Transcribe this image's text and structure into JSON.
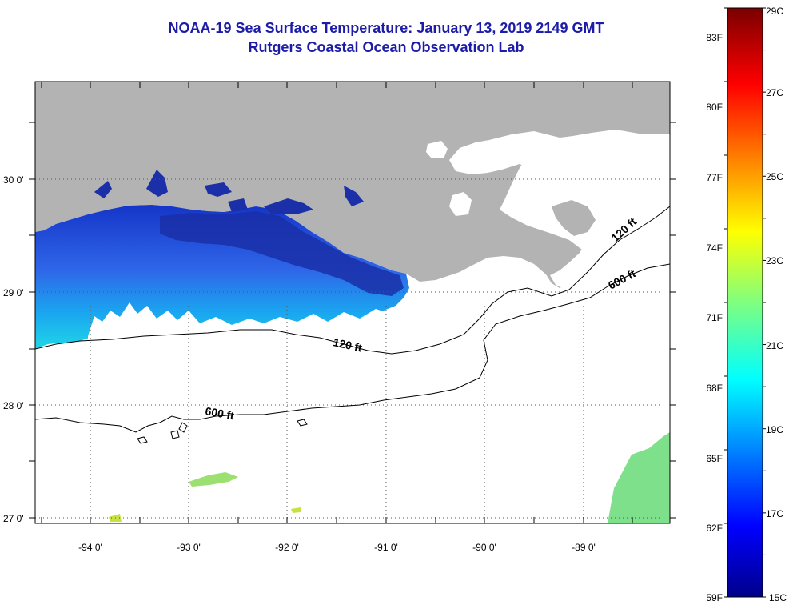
{
  "header": {
    "title": "NOAA-19 Sea Surface Temperature:  January 13, 2019 2149 GMT",
    "subtitle": "Rutgers Coastal Ocean Observation Lab"
  },
  "map": {
    "lat_labels": [
      "30 0'",
      "29 0'",
      "28 0'",
      "27 0'"
    ],
    "lon_labels": [
      "-94 0'",
      "-93 0'",
      "-92 0'",
      "-91 0'",
      "-90 0'",
      "-89 0'"
    ],
    "contours": [
      {
        "label": "120 ft",
        "depth_ft": 120
      },
      {
        "label": "600 ft",
        "depth_ft": 600
      }
    ],
    "contour_label_instances": [
      "120 ft",
      "120 ft",
      "600 ft",
      "600 ft"
    ],
    "colors": {
      "land": "#b3b3b3",
      "cloud_or_nodata": "#ffffff",
      "warm_water": "#7ee08a",
      "cold_water": "#1a2fa8"
    }
  },
  "colorbar": {
    "celsius_labels": [
      "29C",
      "27C",
      "25C",
      "23C",
      "21C",
      "19C",
      "17C",
      "15C"
    ],
    "fahrenheit_labels": [
      "83F",
      "80F",
      "77F",
      "74F",
      "71F",
      "68F",
      "65F",
      "62F",
      "59F"
    ],
    "range_c": [
      15,
      29
    ],
    "range_f": [
      59,
      83
    ],
    "colormap": "jet"
  }
}
